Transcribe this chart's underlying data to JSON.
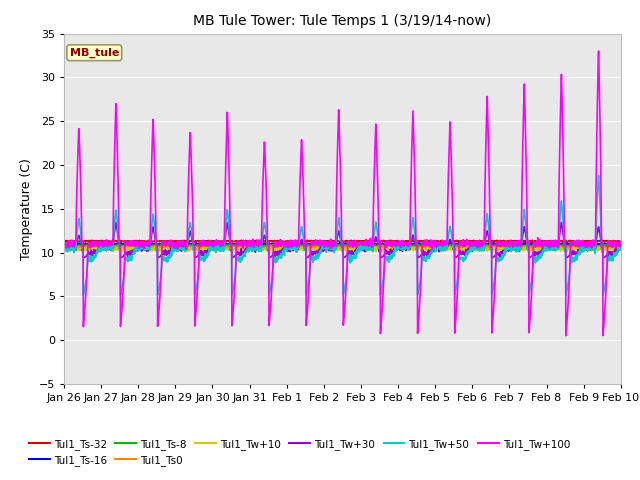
{
  "title": "MB Tule Tower: Tule Temps 1 (3/19/14-now)",
  "ylabel": "Temperature (C)",
  "ylim": [
    -5,
    35
  ],
  "yticks": [
    -5,
    0,
    5,
    10,
    15,
    20,
    25,
    30,
    35
  ],
  "background_color": "#e8e8e8",
  "series": [
    {
      "label": "Tul1_Ts-32",
      "color": "#dd0000"
    },
    {
      "label": "Tul1_Ts-16",
      "color": "#0000dd"
    },
    {
      "label": "Tul1_Ts-8",
      "color": "#00bb00"
    },
    {
      "label": "Tul1_Ts0",
      "color": "#ff8800"
    },
    {
      "label": "Tul1_Tw+10",
      "color": "#cccc00"
    },
    {
      "label": "Tul1_Tw+30",
      "color": "#9900cc"
    },
    {
      "label": "Tul1_Tw+50",
      "color": "#00cccc"
    },
    {
      "label": "Tul1_Tw+100",
      "color": "#ff00ff"
    }
  ],
  "xtick_labels": [
    "Jan 26",
    "Jan 27",
    "Jan 28",
    "Jan 29",
    "Jan 30",
    "Jan 31",
    "Feb 1",
    "Feb 2",
    "Feb 3",
    "Feb 4",
    "Feb 5",
    "Feb 6",
    "Feb 7",
    "Feb 8",
    "Feb 9",
    "Feb 10"
  ],
  "station_label": "MB_tule"
}
